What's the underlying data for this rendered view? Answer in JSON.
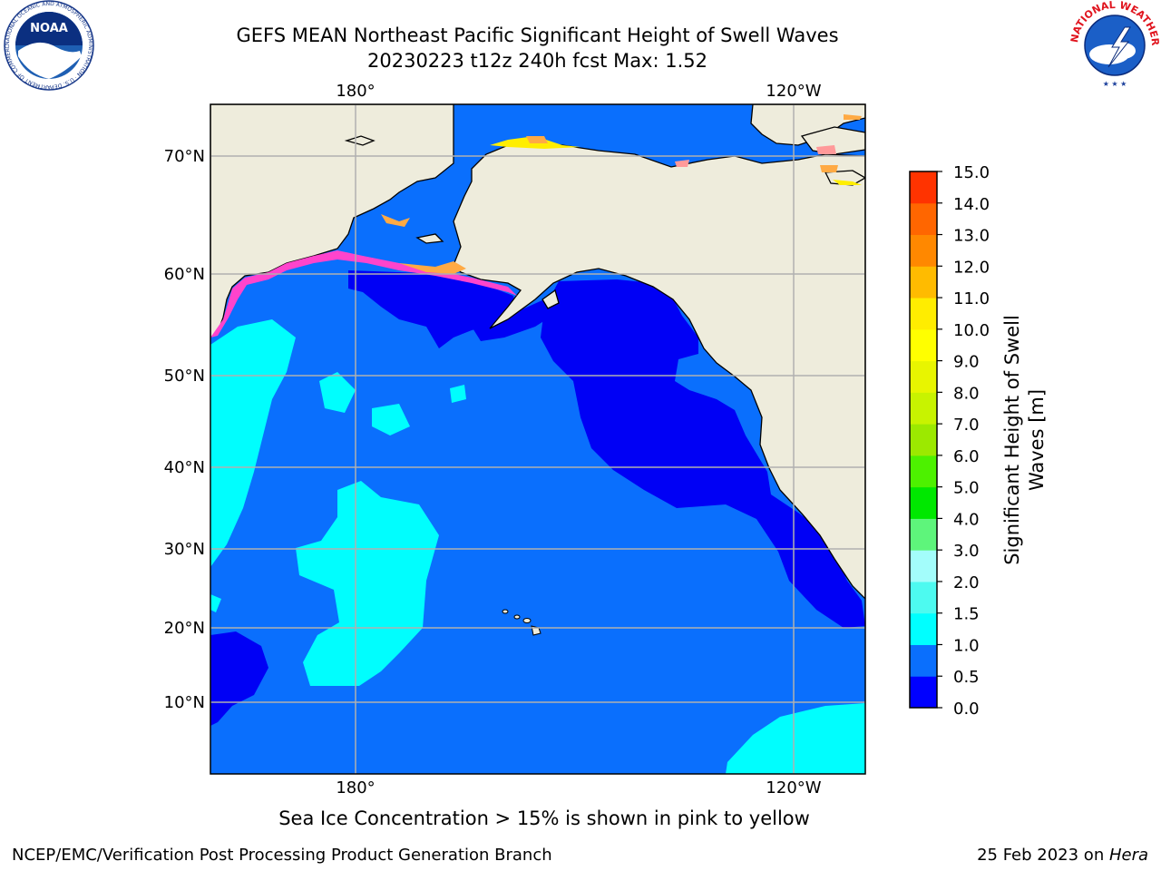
{
  "title": {
    "line1": "GEFS MEAN Northeast Pacific Significant Height of Swell Waves",
    "line2": "20230223 t12z 240h fcst   Max: 1.52"
  },
  "map": {
    "lat_labels": [
      "70°N",
      "60°N",
      "50°N",
      "40°N",
      "30°N",
      "20°N",
      "10°N"
    ],
    "lon_labels": [
      "180°",
      "120°W"
    ],
    "colors": {
      "land": "#eeecdc",
      "ocean_mid": "#0a6ffd",
      "ocean_low": "#0000f5",
      "ocean_high": "#00fefe",
      "ice_pink": "#ff44cc",
      "ice_orange": "#ffaa44",
      "ice_yellow": "#ffee00",
      "grid": "#b0b0b0"
    }
  },
  "colorbar": {
    "label": "Significant Height of Swell Waves [m]",
    "label_line1": "Significant Height of Swell",
    "label_line2": "Waves [m]",
    "ticks": [
      "15.0",
      "14.0",
      "13.0",
      "12.0",
      "11.0",
      "10.0",
      "9.0",
      "8.0",
      "7.0",
      "6.0",
      "5.0",
      "4.0",
      "3.0",
      "2.0",
      "1.5",
      "1.0",
      "0.5",
      "0.0"
    ],
    "bands": [
      "#0000ff",
      "#0a6ffd",
      "#00ffff",
      "#4dfaf0",
      "#a3fdfb",
      "#5ef57b",
      "#00e800",
      "#4df100",
      "#9ce900",
      "#c8f300",
      "#e8f500",
      "#ffff00",
      "#ffed00",
      "#ffbb00",
      "#ff8800",
      "#ff6600",
      "#ff3300",
      "#ff0000"
    ]
  },
  "ice_note": "Sea Ice Concentration > 15% is shown in pink to yellow",
  "footer": {
    "left": "NCEP/EMC/Verification Post Processing Product Generation Branch",
    "right_date": "25 Feb 2023 on ",
    "right_host": "Hera"
  },
  "logos": {
    "noaa_text": "NOAA",
    "noaa_ring": "NATIONAL OCEANIC AND ATMOSPHERIC ADMINISTRATION · U.S. DEPARTMENT OF COMMERCE",
    "nws_ring": "NATIONAL WEATHER SERVICE"
  }
}
